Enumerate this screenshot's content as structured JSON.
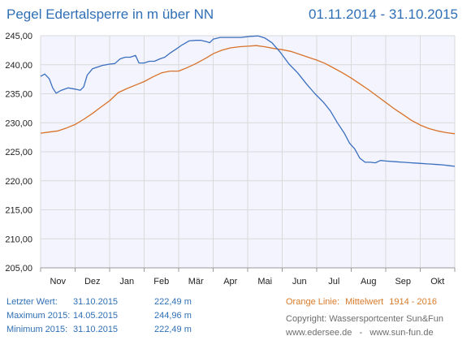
{
  "header": {
    "title": "Pegel Edertalsperre in m über NN",
    "date_range": "01.11.2014 - 31.10.2015"
  },
  "colors": {
    "series_current": "#3a6fbf",
    "series_mean": "#d9722a",
    "plot_fill": "#f3f4fd",
    "grid": "#dadada",
    "axis_text": "#222222"
  },
  "stats": {
    "rows": [
      {
        "label": "Letzter Wert:",
        "date": "31.10.2015",
        "value": "222,49 m"
      },
      {
        "label": "Maximum 2015:",
        "date": "14.05.2015",
        "value": "244,96 m"
      },
      {
        "label": "Minimum 2015:",
        "date": "31.10.2015",
        "value": "222,49 m"
      }
    ]
  },
  "legend_note": {
    "prefix": "Orange Linie:",
    "label": "Mittelwert",
    "period": "1914 - 2016"
  },
  "credits": {
    "line1": "Copyright: Wassersportcenter Sun&Fun",
    "line2": "www.edersee.de   -   www.sun-fun.de"
  },
  "chart_data": {
    "type": "line",
    "title": "Pegel Edertalsperre in m über NN",
    "xlabel": "",
    "ylabel": "",
    "x_unit": "month",
    "x_range": [
      0,
      12
    ],
    "ylim": [
      205,
      245
    ],
    "ytick_values": [
      205,
      210,
      215,
      220,
      225,
      230,
      235,
      240,
      245
    ],
    "ytick_labels": [
      "205,00",
      "210,00",
      "215,00",
      "220,00",
      "225,00",
      "230,00",
      "235,00",
      "240,00",
      "245,00"
    ],
    "categories": [
      "Nov",
      "Dez",
      "Jan",
      "Feb",
      "Mär",
      "Apr",
      "Mai",
      "Jun",
      "Jul",
      "Aug",
      "Sep",
      "Okt"
    ],
    "grid": true,
    "series": [
      {
        "name": "",
        "color": "#3a6fbf",
        "points": [
          [
            0.0,
            238.0
          ],
          [
            0.12,
            238.4
          ],
          [
            0.25,
            237.6
          ],
          [
            0.35,
            236.0
          ],
          [
            0.45,
            235.1
          ],
          [
            0.6,
            235.6
          ],
          [
            0.8,
            236.0
          ],
          [
            1.0,
            235.8
          ],
          [
            1.15,
            235.6
          ],
          [
            1.25,
            236.2
          ],
          [
            1.35,
            238.2
          ],
          [
            1.5,
            239.3
          ],
          [
            1.65,
            239.6
          ],
          [
            1.8,
            239.9
          ],
          [
            2.0,
            240.1
          ],
          [
            2.15,
            240.2
          ],
          [
            2.3,
            241.0
          ],
          [
            2.45,
            241.3
          ],
          [
            2.6,
            241.3
          ],
          [
            2.75,
            241.6
          ],
          [
            2.85,
            240.3
          ],
          [
            3.0,
            240.3
          ],
          [
            3.15,
            240.6
          ],
          [
            3.3,
            240.6
          ],
          [
            3.45,
            241.0
          ],
          [
            3.6,
            241.3
          ],
          [
            3.75,
            242.0
          ],
          [
            3.9,
            242.6
          ],
          [
            4.1,
            243.4
          ],
          [
            4.3,
            244.1
          ],
          [
            4.5,
            244.2
          ],
          [
            4.65,
            244.2
          ],
          [
            4.8,
            244.0
          ],
          [
            4.9,
            243.8
          ],
          [
            5.0,
            244.4
          ],
          [
            5.2,
            244.7
          ],
          [
            5.5,
            244.7
          ],
          [
            5.8,
            244.7
          ],
          [
            6.1,
            244.9
          ],
          [
            6.3,
            244.96
          ],
          [
            6.5,
            244.6
          ],
          [
            6.7,
            243.8
          ],
          [
            6.95,
            242.1
          ],
          [
            7.2,
            240.1
          ],
          [
            7.45,
            238.6
          ],
          [
            7.7,
            236.7
          ],
          [
            7.95,
            235.0
          ],
          [
            8.2,
            233.5
          ],
          [
            8.4,
            232.0
          ],
          [
            8.6,
            230.0
          ],
          [
            8.8,
            228.2
          ],
          [
            8.95,
            226.5
          ],
          [
            9.1,
            225.5
          ],
          [
            9.25,
            223.9
          ],
          [
            9.4,
            223.2
          ],
          [
            9.55,
            223.2
          ],
          [
            9.7,
            223.1
          ],
          [
            9.85,
            223.5
          ],
          [
            10.0,
            223.4
          ],
          [
            10.25,
            223.3
          ],
          [
            10.5,
            223.2
          ],
          [
            10.75,
            223.1
          ],
          [
            11.0,
            223.0
          ],
          [
            11.25,
            222.9
          ],
          [
            11.5,
            222.8
          ],
          [
            11.7,
            222.7
          ],
          [
            11.85,
            222.6
          ],
          [
            12.0,
            222.49
          ]
        ]
      },
      {
        "name": "Mittelwert",
        "color": "#d9722a",
        "points": [
          [
            0.0,
            228.2
          ],
          [
            0.25,
            228.4
          ],
          [
            0.5,
            228.6
          ],
          [
            0.75,
            229.1
          ],
          [
            1.0,
            229.7
          ],
          [
            1.25,
            230.6
          ],
          [
            1.5,
            231.6
          ],
          [
            1.75,
            232.7
          ],
          [
            2.0,
            233.8
          ],
          [
            2.25,
            235.2
          ],
          [
            2.5,
            235.9
          ],
          [
            2.75,
            236.5
          ],
          [
            3.0,
            237.1
          ],
          [
            3.25,
            237.9
          ],
          [
            3.5,
            238.6
          ],
          [
            3.75,
            238.9
          ],
          [
            4.0,
            238.9
          ],
          [
            4.25,
            239.5
          ],
          [
            4.5,
            240.2
          ],
          [
            4.75,
            241.0
          ],
          [
            5.0,
            241.9
          ],
          [
            5.25,
            242.5
          ],
          [
            5.5,
            242.9
          ],
          [
            5.75,
            243.1
          ],
          [
            6.0,
            243.2
          ],
          [
            6.25,
            243.3
          ],
          [
            6.5,
            243.1
          ],
          [
            6.75,
            242.8
          ],
          [
            7.0,
            242.6
          ],
          [
            7.25,
            242.3
          ],
          [
            7.5,
            241.8
          ],
          [
            7.75,
            241.3
          ],
          [
            8.0,
            240.8
          ],
          [
            8.25,
            240.2
          ],
          [
            8.5,
            239.4
          ],
          [
            8.75,
            238.6
          ],
          [
            9.0,
            237.7
          ],
          [
            9.25,
            236.7
          ],
          [
            9.5,
            235.7
          ],
          [
            9.75,
            234.6
          ],
          [
            10.0,
            233.5
          ],
          [
            10.25,
            232.4
          ],
          [
            10.5,
            231.4
          ],
          [
            10.75,
            230.4
          ],
          [
            11.0,
            229.6
          ],
          [
            11.25,
            229.0
          ],
          [
            11.5,
            228.6
          ],
          [
            11.75,
            228.3
          ],
          [
            12.0,
            228.1
          ]
        ]
      }
    ]
  }
}
